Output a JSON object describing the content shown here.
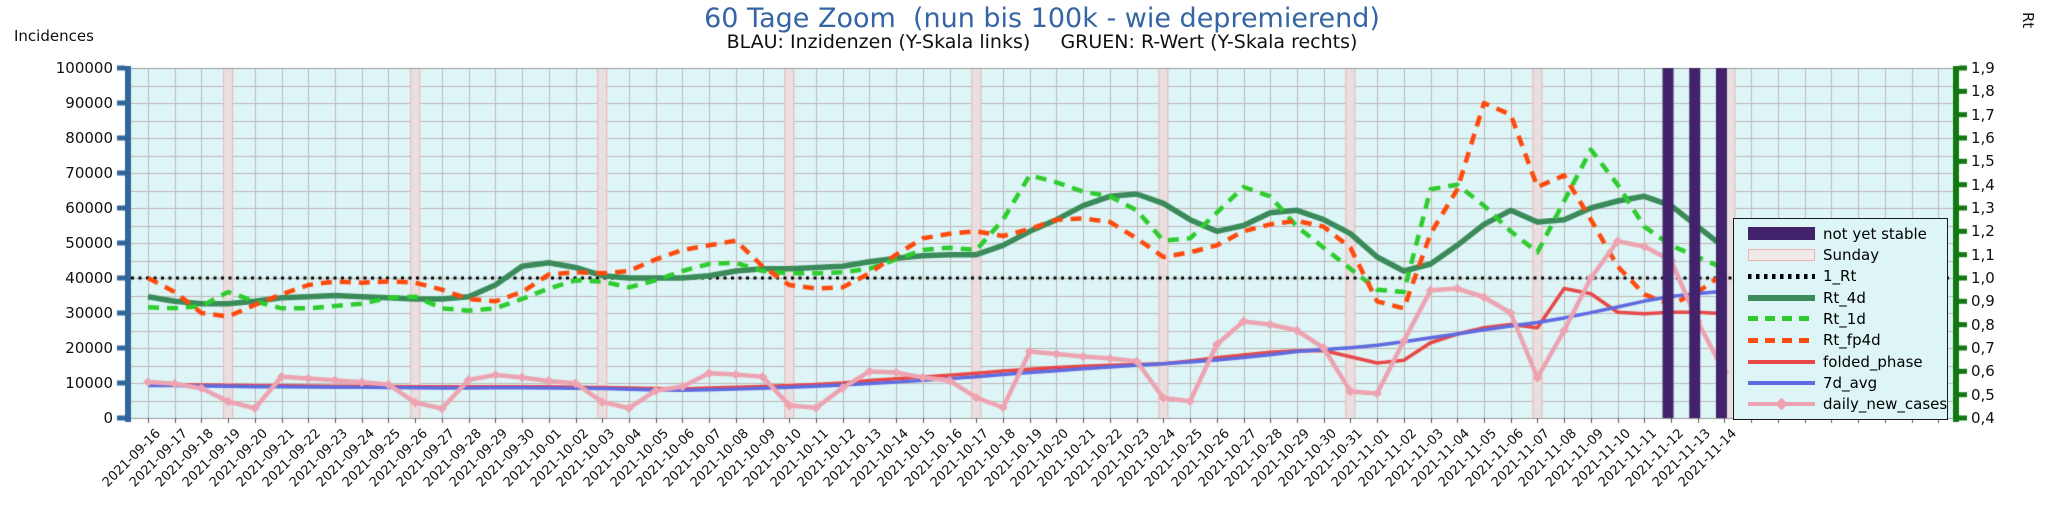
{
  "header": {
    "title": "60 Tage Zoom  (nun bis 100k - wie depremierend)",
    "subtitle": "BLAU: Inzidenzen (Y-Skala links)     GRUEN: R-Wert (Y-Skala rechts)",
    "title_color": "#3465a4"
  },
  "left_axis": {
    "label": "Incidences",
    "min": 0,
    "max": 100000,
    "tick_step": 10000,
    "tick_labels": [
      "0",
      "10000",
      "20000",
      "30000",
      "40000",
      "50000",
      "60000",
      "70000",
      "80000",
      "90000",
      "100000"
    ],
    "color": "#31669b"
  },
  "right_axis": {
    "label": "Rt",
    "min": 0.4,
    "max": 1.9,
    "tick_step": 0.1,
    "tick_labels": [
      "0,4",
      "0,5",
      "0,6",
      "0,7",
      "0,8",
      "0,9",
      "1,0",
      "1,1",
      "1,2",
      "1,3",
      "1,4",
      "1,5",
      "1,6",
      "1,7",
      "1,8",
      "1,9"
    ],
    "color": "#117711"
  },
  "legend": {
    "items": [
      {
        "name": "not-yet-stable",
        "label": "not yet stable",
        "type": "bar",
        "color": "#41226b"
      },
      {
        "name": "sunday",
        "label": "Sunday",
        "type": "band",
        "color": "#f0e9e9"
      },
      {
        "name": "1-rt",
        "label": "1_Rt",
        "type": "dotted",
        "color": "#000000"
      },
      {
        "name": "rt-4d",
        "label": "Rt_4d",
        "type": "solid-thick",
        "color": "#3a8a5a"
      },
      {
        "name": "rt-1d",
        "label": "Rt_1d",
        "type": "dashed",
        "color": "#2ecc2e"
      },
      {
        "name": "rt-fp4d",
        "label": "Rt_fp4d",
        "type": "dashed",
        "color": "#ff4a0e"
      },
      {
        "name": "folded-phase",
        "label": "folded_phase",
        "type": "solid",
        "color": "#e84848"
      },
      {
        "name": "7d-avg",
        "label": "7d_avg",
        "type": "solid",
        "color": "#5f6be0"
      },
      {
        "name": "daily-new-cases",
        "label": "daily_new_cases",
        "type": "diamond-line",
        "color": "#eda4b2"
      }
    ]
  },
  "chart_data": {
    "type": "line",
    "title": "60 Tage Zoom  (nun bis 100k - wie depremierend)",
    "x_dates": [
      "2021-09-16",
      "2021-09-17",
      "2021-09-18",
      "2021-09-19",
      "2021-09-20",
      "2021-09-21",
      "2021-09-22",
      "2021-09-23",
      "2021-09-24",
      "2021-09-25",
      "2021-09-26",
      "2021-09-27",
      "2021-09-28",
      "2021-09-29",
      "2021-09-30",
      "2021-10-01",
      "2021-10-02",
      "2021-10-03",
      "2021-10-04",
      "2021-10-05",
      "2021-10-06",
      "2021-10-07",
      "2021-10-08",
      "2021-10-09",
      "2021-10-10",
      "2021-10-11",
      "2021-10-12",
      "2021-10-13",
      "2021-10-14",
      "2021-10-15",
      "2021-10-16",
      "2021-10-17",
      "2021-10-18",
      "2021-10-19",
      "2021-10-20",
      "2021-10-21",
      "2021-10-22",
      "2021-10-23",
      "2021-10-24",
      "2021-10-25",
      "2021-10-26",
      "2021-10-27",
      "2021-10-28",
      "2021-10-29",
      "2021-10-30",
      "2021-10-31",
      "2021-11-01",
      "2021-11-02",
      "2021-11-03",
      "2021-11-04",
      "2021-11-05",
      "2021-11-06",
      "2021-11-07",
      "2021-11-08",
      "2021-11-09",
      "2021-11-10",
      "2021-11-11",
      "2021-11-12",
      "2021-11-13",
      "2021-11-14"
    ],
    "sundays": [
      "2021-09-19",
      "2021-09-26",
      "2021-10-03",
      "2021-10-10",
      "2021-10-17",
      "2021-10-24",
      "2021-10-31",
      "2021-11-07",
      "2021-11-14"
    ],
    "not_yet_stable": [
      "2021-11-12",
      "2021-11-13",
      "2021-11-14"
    ],
    "reference_line": {
      "name": "1_Rt",
      "axis": "right",
      "value": 1.0,
      "style": "dotted",
      "color": "#000000"
    },
    "left_ylim": [
      0,
      100000
    ],
    "right_ylim": [
      0.4,
      1.9
    ],
    "grid": true,
    "legend_position": "right",
    "series": [
      {
        "name": "Rt_4d",
        "axis": "right",
        "style": "solid",
        "color": "#3a8a5a",
        "width": 5.5,
        "values": [
          0.92,
          0.9,
          0.89,
          0.89,
          0.9,
          0.915,
          0.92,
          0.925,
          0.92,
          0.915,
          0.91,
          0.91,
          0.92,
          0.97,
          1.05,
          1.065,
          1.045,
          1.01,
          1.0,
          1.0,
          1.0,
          1.01,
          1.03,
          1.04,
          1.04,
          1.045,
          1.05,
          1.07,
          1.085,
          1.095,
          1.1,
          1.1,
          1.14,
          1.2,
          1.25,
          1.31,
          1.35,
          1.36,
          1.32,
          1.25,
          1.2,
          1.225,
          1.28,
          1.29,
          1.25,
          1.19,
          1.09,
          1.03,
          1.06,
          1.14,
          1.23,
          1.29,
          1.24,
          1.25,
          1.3,
          1.33,
          1.35,
          1.31,
          1.22,
          1.13
        ]
      },
      {
        "name": "Rt_1d",
        "axis": "right",
        "style": "dashed",
        "color": "#2ecc2e",
        "width": 4.5,
        "values": [
          0.875,
          0.87,
          0.88,
          0.94,
          0.9,
          0.87,
          0.87,
          0.88,
          0.89,
          0.915,
          0.92,
          0.87,
          0.86,
          0.87,
          0.91,
          0.955,
          0.99,
          0.985,
          0.96,
          0.99,
          1.03,
          1.06,
          1.065,
          1.03,
          1.02,
          1.02,
          1.025,
          1.04,
          1.08,
          1.12,
          1.13,
          1.12,
          1.25,
          1.44,
          1.41,
          1.37,
          1.35,
          1.29,
          1.16,
          1.17,
          1.28,
          1.39,
          1.35,
          1.22,
          1.13,
          1.04,
          0.95,
          0.94,
          1.38,
          1.4,
          1.31,
          1.2,
          1.11,
          1.33,
          1.55,
          1.4,
          1.22,
          1.14,
          1.09,
          1.04
        ]
      },
      {
        "name": "Rt_fp4d",
        "axis": "right",
        "style": "dashed",
        "color": "#ff4a0e",
        "width": 4.5,
        "values": [
          1.0,
          0.94,
          0.85,
          0.835,
          0.885,
          0.93,
          0.97,
          0.985,
          0.98,
          0.985,
          0.98,
          0.95,
          0.91,
          0.9,
          0.94,
          1.015,
          1.025,
          1.02,
          1.03,
          1.08,
          1.12,
          1.14,
          1.16,
          1.05,
          0.97,
          0.955,
          0.96,
          1.02,
          1.1,
          1.17,
          1.19,
          1.2,
          1.18,
          1.21,
          1.25,
          1.255,
          1.24,
          1.17,
          1.09,
          1.11,
          1.14,
          1.2,
          1.23,
          1.245,
          1.22,
          1.13,
          0.9,
          0.87,
          1.19,
          1.38,
          1.75,
          1.7,
          1.39,
          1.44,
          1.25,
          1.05,
          0.93,
          0.885,
          0.94,
          1.02
        ]
      },
      {
        "name": "folded_phase",
        "axis": "left",
        "style": "solid",
        "color": "#e84848",
        "width": 3.5,
        "values": [
          9600,
          9550,
          9450,
          9350,
          9250,
          9200,
          9150,
          9100,
          9050,
          9000,
          8950,
          8900,
          8900,
          8950,
          8950,
          8900,
          8800,
          8700,
          8550,
          8400,
          8300,
          8550,
          8800,
          9000,
          9300,
          9600,
          10000,
          10700,
          11200,
          11700,
          12200,
          12800,
          13400,
          13900,
          14400,
          14800,
          15100,
          15300,
          15500,
          16300,
          17200,
          18000,
          18800,
          19200,
          19300,
          17500,
          15700,
          16500,
          21500,
          24000,
          25800,
          26700,
          25800,
          37000,
          35500,
          30200,
          29800,
          30200,
          30200,
          29800
        ]
      },
      {
        "name": "7d_avg",
        "axis": "left",
        "style": "solid",
        "color": "#5f6be0",
        "width": 3.5,
        "values": [
          9300,
          9250,
          9150,
          9050,
          8950,
          8900,
          8850,
          8800,
          8750,
          8700,
          8650,
          8600,
          8600,
          8650,
          8650,
          8600,
          8500,
          8400,
          8200,
          8000,
          7900,
          8050,
          8250,
          8500,
          8800,
          9100,
          9450,
          9850,
          10250,
          10750,
          11250,
          11800,
          12400,
          13000,
          13500,
          14100,
          14600,
          15100,
          15500,
          16000,
          16600,
          17300,
          18100,
          19000,
          19600,
          20100,
          20800,
          21800,
          22900,
          24000,
          25200,
          26300,
          27300,
          28600,
          30100,
          31700,
          33400,
          34700,
          35600,
          36200
        ]
      },
      {
        "name": "daily_new_cases",
        "axis": "left",
        "style": "solid",
        "color": "#eda4b2",
        "width": 4.5,
        "marker": "diamond",
        "values": [
          10300,
          9800,
          8500,
          4700,
          2800,
          11800,
          11300,
          10800,
          10200,
          9600,
          4400,
          2700,
          10900,
          12300,
          11600,
          10600,
          9900,
          4600,
          2800,
          7800,
          9000,
          12800,
          12400,
          11800,
          3600,
          2900,
          8600,
          13300,
          13000,
          11600,
          10700,
          5800,
          3000,
          19000,
          18300,
          17600,
          17000,
          16200,
          5700,
          4800,
          21000,
          27600,
          26700,
          25000,
          20000,
          7600,
          7000,
          22000,
          36500,
          37000,
          34500,
          30000,
          11500,
          25000,
          40000,
          50500,
          49000,
          45000,
          27500,
          13000
        ]
      }
    ],
    "colors": {
      "plot_bg": "#ddf5f6",
      "grid": "#c2b8b8",
      "sunday_fill": "#e8e0e0",
      "sunday_edge": "#f2b0b0",
      "not_yet_stable_bar": "#41226b",
      "axis_left_bar": "#31669b",
      "axis_right_bar": "#117711",
      "frame": "#999999"
    }
  }
}
